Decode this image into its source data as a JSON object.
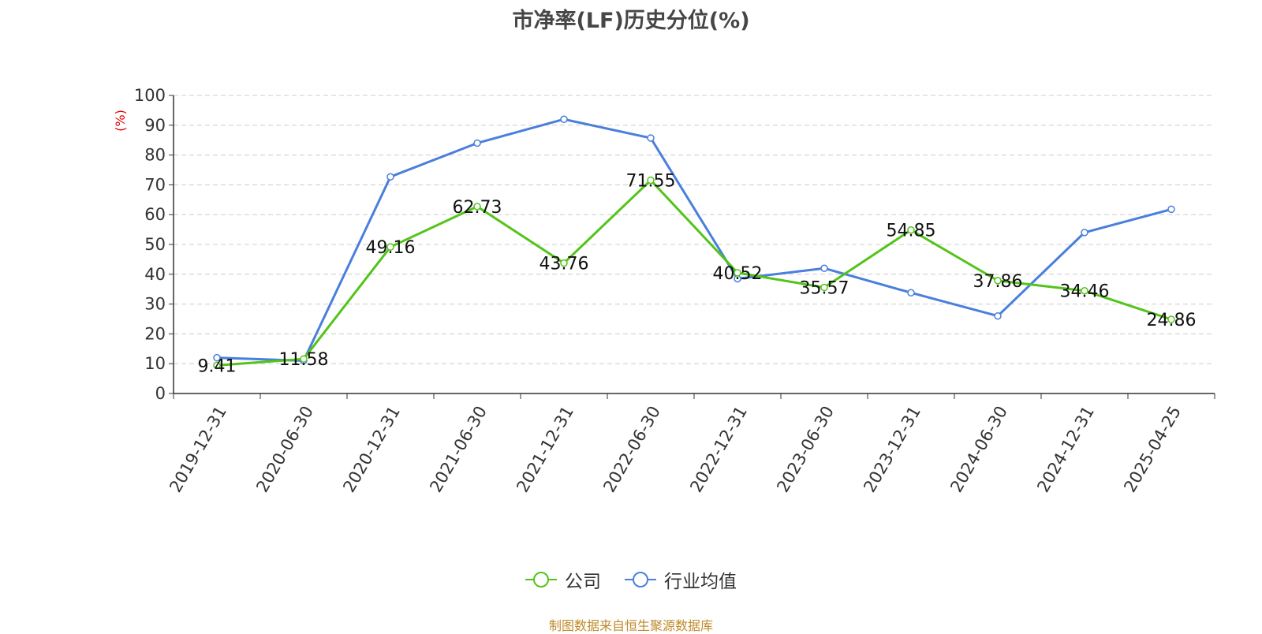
{
  "chart_data": {
    "type": "line",
    "title": "市净率(LF)历史分位(%)",
    "ylabel": "(%)",
    "ylim": [
      0,
      100
    ],
    "ytick_step": 10,
    "grid": true,
    "legend_position": "bottom",
    "categories": [
      "2019-12-31",
      "2020-06-30",
      "2020-12-31",
      "2021-06-30",
      "2021-12-31",
      "2022-06-30",
      "2022-12-31",
      "2023-06-30",
      "2023-12-31",
      "2024-06-30",
      "2024-12-31",
      "2025-04-25"
    ],
    "series": [
      {
        "name": "公司",
        "color": "#52c41a",
        "show_labels": true,
        "values": [
          9.41,
          11.58,
          49.16,
          62.73,
          43.76,
          71.55,
          40.52,
          35.57,
          54.85,
          37.86,
          34.46,
          24.86
        ]
      },
      {
        "name": "行业均值",
        "color": "#4a7fdb",
        "show_labels": false,
        "values": [
          12.0,
          11.0,
          72.7,
          84.0,
          92.0,
          85.7,
          38.5,
          42.0,
          33.8,
          26.0,
          54.0,
          61.8
        ]
      }
    ]
  },
  "source_text": "制图数据来自恒生聚源数据库"
}
